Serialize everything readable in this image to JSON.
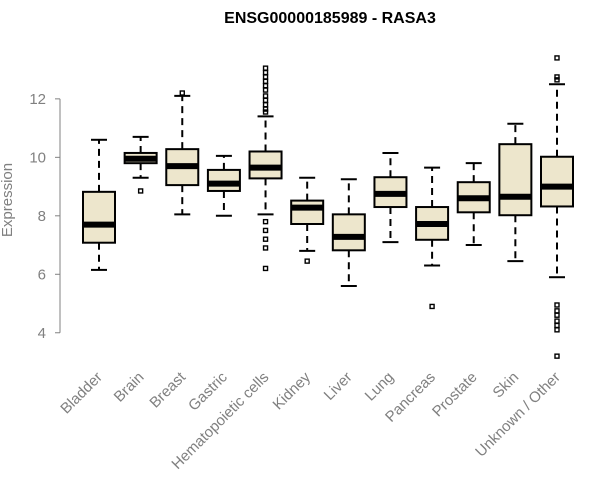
{
  "chart_data": {
    "type": "boxplot",
    "title": "ENSG00000185989 - RASA3",
    "xlabel": "",
    "ylabel": "Expression",
    "ylim": [
      3.0,
      13.5
    ],
    "yticks": [
      4,
      6,
      8,
      10,
      12
    ],
    "box_fill": "#ede6cc",
    "categories": [
      "Bladder",
      "Brain",
      "Breast",
      "Gastric",
      "Hematopoietic cells",
      "Kidney",
      "Liver",
      "Lung",
      "Pancreas",
      "Prostate",
      "Skin",
      "Unknown / Other"
    ],
    "boxes": [
      {
        "name": "Bladder",
        "whisker_low": 6.15,
        "q1": 7.08,
        "median": 7.7,
        "q3": 8.82,
        "whisker_high": 10.6,
        "outliers": []
      },
      {
        "name": "Brain",
        "whisker_low": 9.3,
        "q1": 9.8,
        "median": 9.95,
        "q3": 10.15,
        "whisker_high": 10.7,
        "outliers": [
          8.85
        ]
      },
      {
        "name": "Breast",
        "whisker_low": 8.05,
        "q1": 9.05,
        "median": 9.7,
        "q3": 10.28,
        "whisker_high": 12.1,
        "outliers": [
          12.2
        ]
      },
      {
        "name": "Gastric",
        "whisker_low": 8.0,
        "q1": 8.85,
        "median": 9.1,
        "q3": 9.57,
        "whisker_high": 10.05,
        "outliers": []
      },
      {
        "name": "Hematopoietic cells",
        "whisker_low": 8.05,
        "q1": 9.28,
        "median": 9.65,
        "q3": 10.2,
        "whisker_high": 11.4,
        "outliers": [
          6.2,
          6.9,
          7.2,
          7.5,
          7.8,
          11.55,
          11.65,
          11.8,
          11.95,
          12.1,
          12.3,
          12.45,
          12.6,
          12.75,
          12.9,
          13.05
        ]
      },
      {
        "name": "Kidney",
        "whisker_low": 6.8,
        "q1": 7.72,
        "median": 8.28,
        "q3": 8.52,
        "whisker_high": 9.3,
        "outliers": [
          6.45
        ]
      },
      {
        "name": "Liver",
        "whisker_low": 5.6,
        "q1": 6.82,
        "median": 7.28,
        "q3": 8.05,
        "whisker_high": 9.25,
        "outliers": []
      },
      {
        "name": "Lung",
        "whisker_low": 7.1,
        "q1": 8.3,
        "median": 8.75,
        "q3": 9.32,
        "whisker_high": 10.15,
        "outliers": []
      },
      {
        "name": "Pancreas",
        "whisker_low": 6.3,
        "q1": 7.18,
        "median": 7.72,
        "q3": 8.3,
        "whisker_high": 9.65,
        "outliers": [
          4.9
        ]
      },
      {
        "name": "Prostate",
        "whisker_low": 7.0,
        "q1": 8.12,
        "median": 8.6,
        "q3": 9.15,
        "whisker_high": 9.8,
        "outliers": []
      },
      {
        "name": "Skin",
        "whisker_low": 6.45,
        "q1": 8.02,
        "median": 8.65,
        "q3": 10.45,
        "whisker_high": 11.15,
        "outliers": []
      },
      {
        "name": "Unknown / Other",
        "whisker_low": 5.9,
        "q1": 8.32,
        "median": 9.0,
        "q3": 10.02,
        "whisker_high": 12.5,
        "outliers": [
          3.2,
          4.1,
          4.25,
          4.4,
          4.6,
          4.75,
          4.95,
          12.65,
          12.75,
          13.4
        ]
      }
    ]
  }
}
